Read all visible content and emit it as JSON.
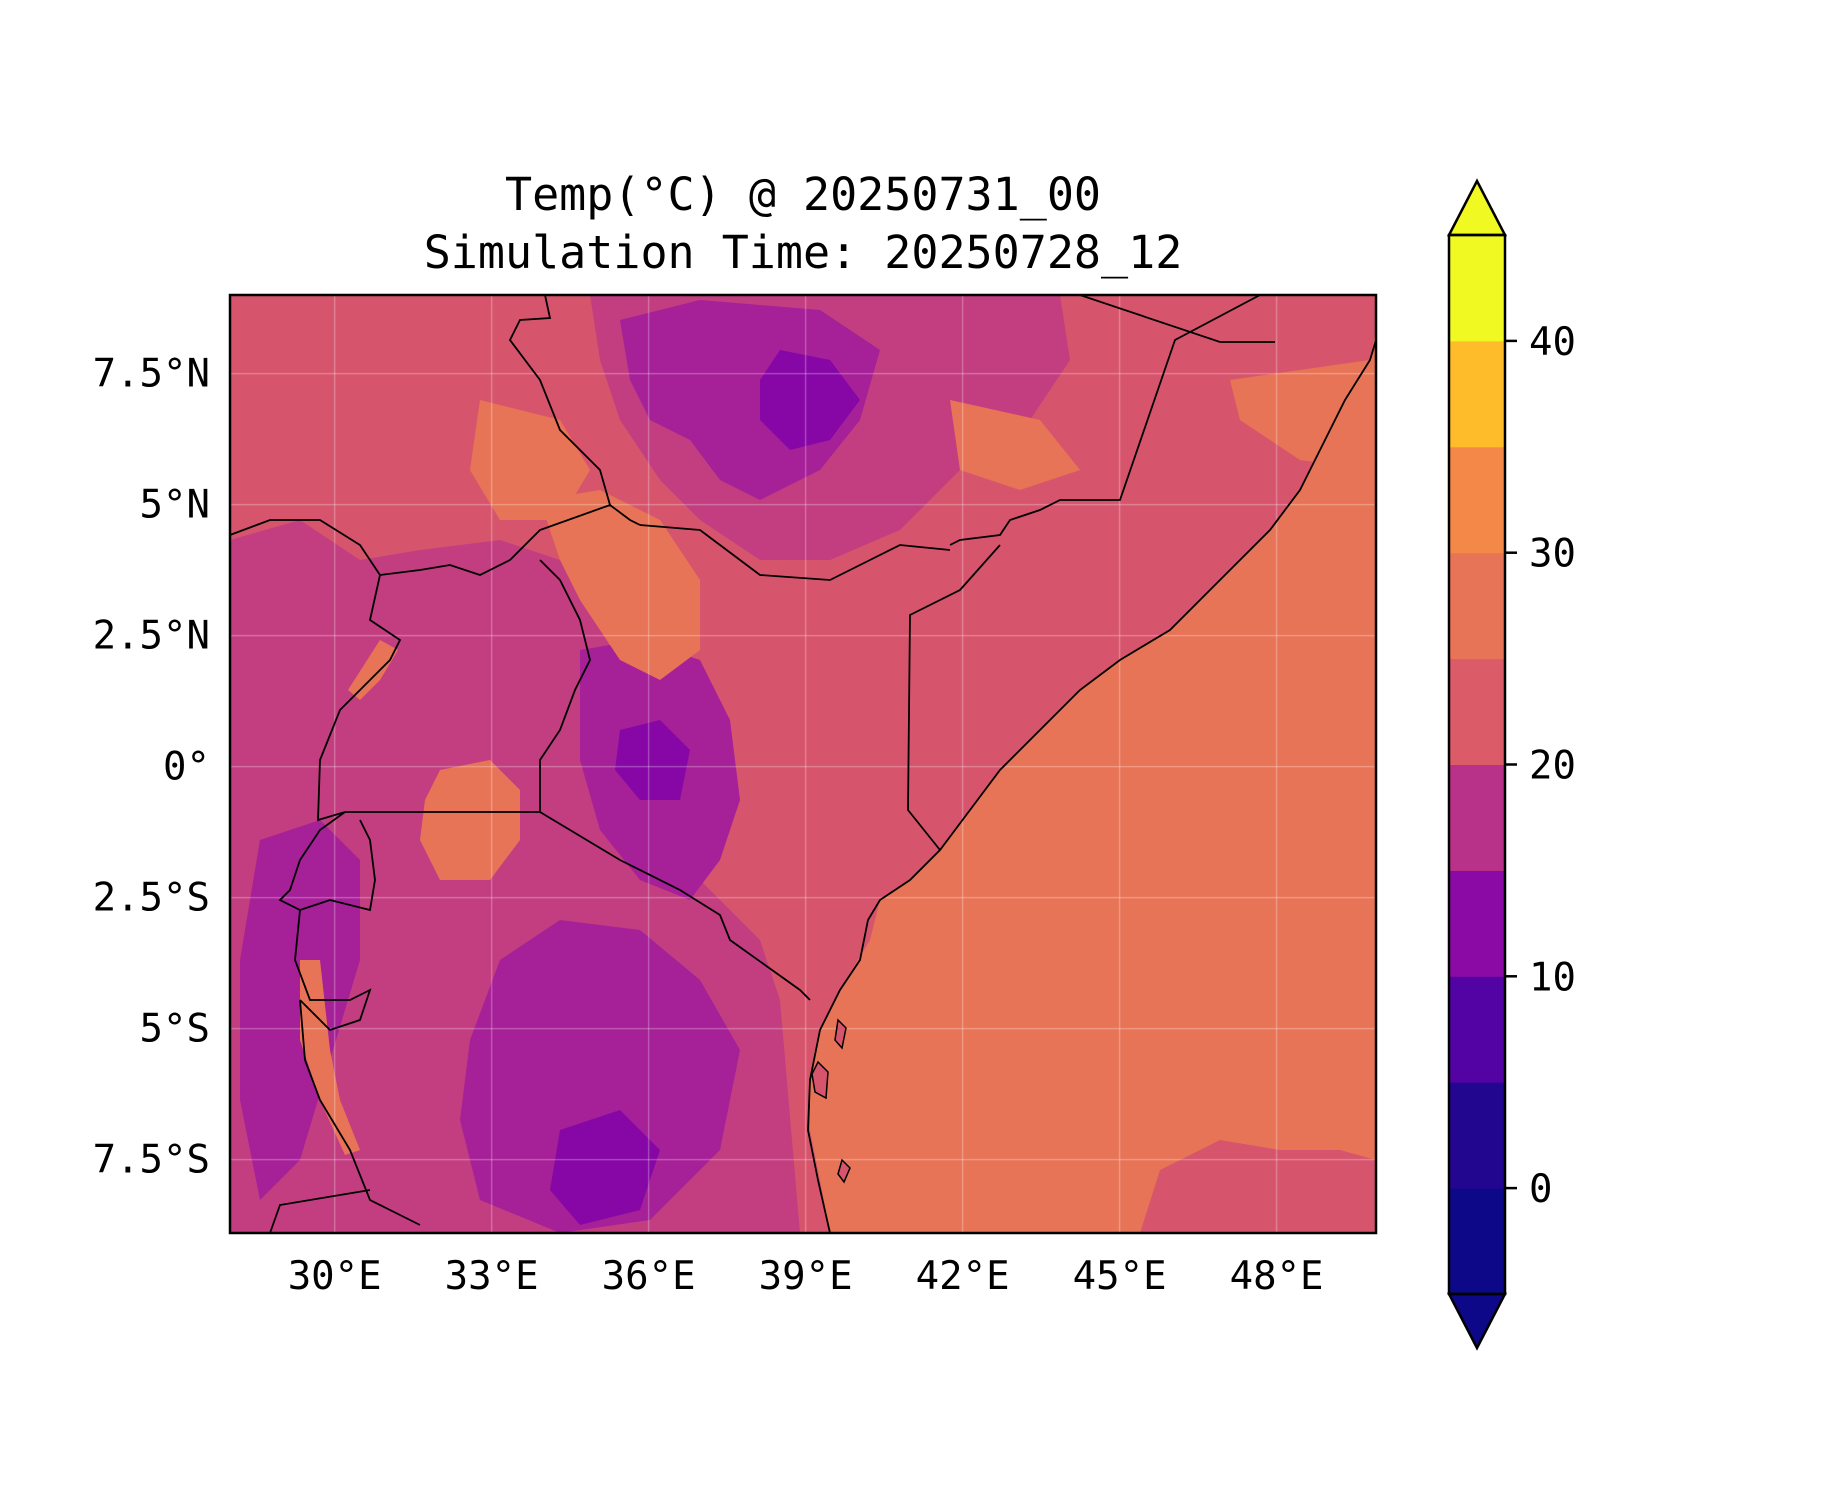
{
  "title": {
    "line1": "Temp(°C) @ 20250731_00",
    "line2": "Simulation Time: 20250728_12"
  },
  "map": {
    "region": "East Africa",
    "variable": "Temp(°C)",
    "lon_range": [
      28.0,
      49.9
    ],
    "lat_range": [
      -8.9,
      9.0
    ],
    "x_ticks": [
      {
        "value": 30,
        "label": "30°E"
      },
      {
        "value": 33,
        "label": "33°E"
      },
      {
        "value": 36,
        "label": "36°E"
      },
      {
        "value": 39,
        "label": "39°E"
      },
      {
        "value": 42,
        "label": "42°E"
      },
      {
        "value": 45,
        "label": "45°E"
      },
      {
        "value": 48,
        "label": "48°E"
      }
    ],
    "y_ticks": [
      {
        "value": 7.5,
        "label": "7.5°N"
      },
      {
        "value": 5,
        "label": "5°N"
      },
      {
        "value": 2.5,
        "label": "2.5°N"
      },
      {
        "value": 0,
        "label": "0°"
      },
      {
        "value": -2.5,
        "label": "2.5°S"
      },
      {
        "value": -5,
        "label": "5°S"
      },
      {
        "value": -7.5,
        "label": "7.5°S"
      }
    ],
    "gridlines": true,
    "colors": {
      "ocean": "#e87457",
      "lowland": "#d6556d",
      "highland": "#c23e81",
      "plateau": "#a62098",
      "peak": "#8707a6",
      "coast_hot": "#e87457",
      "border": "#000000"
    }
  },
  "colorbar": {
    "colormap": "plasma",
    "levels": [
      -5,
      0,
      5,
      10,
      15,
      20,
      25,
      30,
      35,
      40,
      45
    ],
    "colors": [
      "#0d0887",
      "#220690",
      "#5302a3",
      "#8b0aa5",
      "#b83289",
      "#db5c68",
      "#e87457",
      "#f48849",
      "#febc2a",
      "#f0f921"
    ],
    "under_color": "#0d0887",
    "over_color": "#f0f921",
    "extend": "both",
    "ticks": [
      {
        "value": 0,
        "label": "0"
      },
      {
        "value": 10,
        "label": "10"
      },
      {
        "value": 20,
        "label": "20"
      },
      {
        "value": 30,
        "label": "30"
      },
      {
        "value": 40,
        "label": "40"
      }
    ]
  }
}
